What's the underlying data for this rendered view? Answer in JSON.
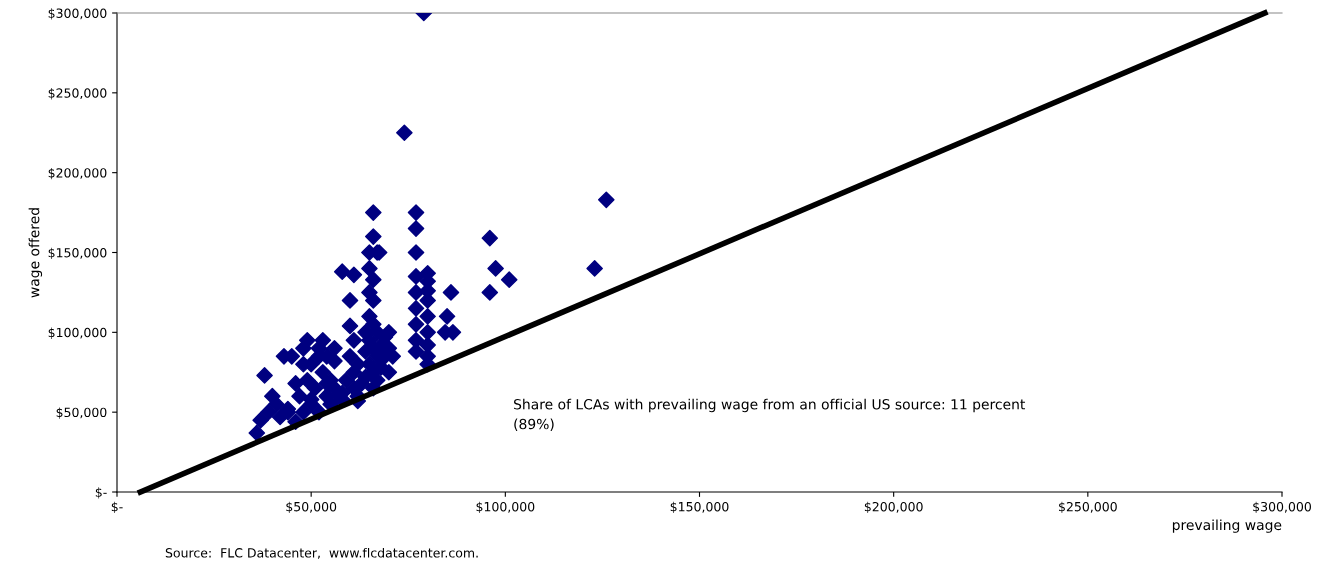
{
  "chart_data": {
    "type": "scatter",
    "xlabel": "prevailing wage",
    "ylabel": "wage offered",
    "xlim": [
      0,
      300000
    ],
    "ylim": [
      0,
      300000
    ],
    "xticks": [
      {
        "value": 0,
        "label": "$-"
      },
      {
        "value": 50000,
        "label": "$50,000"
      },
      {
        "value": 100000,
        "label": "$100,000"
      },
      {
        "value": 150000,
        "label": "$150,000"
      },
      {
        "value": 200000,
        "label": "$200,000"
      },
      {
        "value": 250000,
        "label": "$250,000"
      },
      {
        "value": 300000,
        "label": "$300,000"
      }
    ],
    "yticks": [
      {
        "value": 0,
        "label": "$-"
      },
      {
        "value": 50000,
        "label": "$50,000"
      },
      {
        "value": 100000,
        "label": "$100,000"
      },
      {
        "value": 150000,
        "label": "$150,000"
      },
      {
        "value": 200000,
        "label": "$200,000"
      },
      {
        "value": 250000,
        "label": "$250,000"
      },
      {
        "value": 300000,
        "label": "$300,000"
      }
    ],
    "grid": false,
    "legend": false,
    "series": [
      {
        "marker": "diamond",
        "color": "#000080",
        "x": [
          79000,
          74000,
          126000,
          66000,
          77000,
          66000,
          96000,
          58000,
          61000,
          65000,
          67500,
          77000,
          97500,
          123000,
          101000,
          96000,
          86000,
          80000,
          80000,
          85000,
          86500,
          84500,
          36000,
          37000,
          39000,
          40000,
          38000,
          41000,
          42000,
          44000,
          45000,
          46000,
          43000,
          47000,
          48000,
          48000,
          49000,
          49000,
          50000,
          50000,
          51000,
          52000,
          52000,
          53000,
          53000,
          54000,
          54000,
          55000,
          55000,
          56000,
          56000,
          57000,
          58000,
          59000,
          60000,
          60000,
          60000,
          61000,
          61000,
          61000,
          62000,
          62000,
          63000,
          64000,
          64000,
          65000,
          65000,
          65000,
          65000,
          65000,
          66000,
          66000,
          66000,
          66000,
          66000,
          66000,
          67000,
          67000,
          67000,
          67000,
          68000,
          68000,
          69000,
          69000,
          70000,
          70000,
          70000,
          71000,
          77000,
          77000,
          77000,
          77000,
          77000,
          77000,
          77000,
          80000,
          80000,
          80000,
          80000,
          80000,
          80000,
          80000,
          44000,
          46000,
          48000,
          50000,
          52000,
          54000,
          56000,
          58000,
          62000,
          64000
        ],
        "values": [
          300000,
          225000,
          183000,
          175000,
          175000,
          160000,
          159000,
          138000,
          136000,
          150000,
          150000,
          150000,
          140000,
          140000,
          133000,
          125000,
          125000,
          137000,
          126000,
          110000,
          100000,
          100000,
          37000,
          45000,
          50000,
          60000,
          73000,
          55000,
          47000,
          52000,
          85000,
          44000,
          85000,
          60000,
          90000,
          50000,
          70000,
          95000,
          55000,
          80000,
          65000,
          90000,
          50000,
          75000,
          95000,
          60000,
          85000,
          55000,
          70000,
          65000,
          90000,
          60000,
          58000,
          70000,
          120000,
          104000,
          85000,
          95000,
          75000,
          65000,
          60000,
          80000,
          68000,
          72000,
          88000,
          140000,
          125000,
          110000,
          95000,
          80000,
          133000,
          120000,
          105000,
          90000,
          75000,
          65000,
          100000,
          85000,
          70000,
          150000,
          92000,
          78000,
          97000,
          85000,
          90000,
          100000,
          75000,
          85000,
          165000,
          135000,
          125000,
          115000,
          105000,
          95000,
          88000,
          132000,
          120000,
          110000,
          100000,
          92000,
          85000,
          80000,
          50000,
          68000,
          80000,
          58000,
          85000,
          68000,
          82000,
          62000,
          57000,
          100000
        ]
      },
      {
        "type": "line",
        "marker": "none",
        "color": "#000000",
        "x": [
          6000,
          295600
        ],
        "values": [
          0,
          300000
        ]
      }
    ],
    "annotations": [
      "Share of LCAs with prevailing wage from an official US source: 11 percent\n(89%)",
      "Source:  FLC Datacenter,  www.flcdatacenter.com."
    ]
  }
}
